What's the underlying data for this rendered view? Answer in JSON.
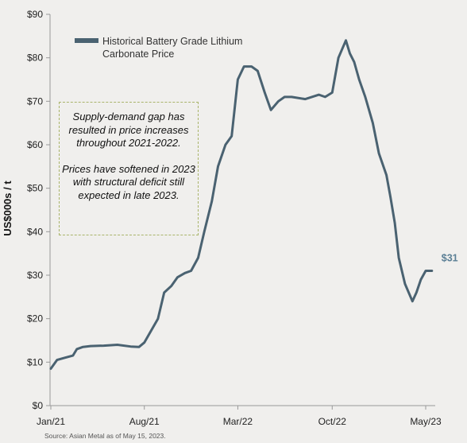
{
  "chart_data": {
    "type": "line",
    "title": "",
    "ylabel": "US$000s / t",
    "xlabel": "",
    "ylim": [
      0,
      90
    ],
    "y_ticks": [
      "$0",
      "$10",
      "$20",
      "$30",
      "$40",
      "$50",
      "$60",
      "$70",
      "$80",
      "$90"
    ],
    "x_tick_labels": [
      "Jan/21",
      "Aug/21",
      "Mar/22",
      "Oct/22",
      "May/23"
    ],
    "legend": {
      "position": "top-left"
    },
    "series": [
      {
        "name": "Historical Battery Grade Lithium Carbonate Price",
        "color": "#4a6271",
        "x": [
          "2021-01",
          "2021-01-15",
          "2021-02",
          "2021-02-20",
          "2021-03",
          "2021-03-15",
          "2021-04",
          "2021-05",
          "2021-06",
          "2021-07",
          "2021-07-20",
          "2021-08",
          "2021-08-15",
          "2021-09",
          "2021-09-15",
          "2021-10",
          "2021-10-15",
          "2021-11",
          "2021-11-15",
          "2021-12",
          "2021-12-15",
          "2022-01",
          "2022-01-15",
          "2022-02",
          "2022-02-15",
          "2022-03",
          "2022-03-15",
          "2022-04",
          "2022-04-15",
          "2022-05",
          "2022-05-15",
          "2022-06",
          "2022-06-15",
          "2022-07",
          "2022-08",
          "2022-09",
          "2022-09-15",
          "2022-10",
          "2022-10-15",
          "2022-11",
          "2022-11-10",
          "2022-11-20",
          "2022-12",
          "2022-12-15",
          "2023-01",
          "2023-01-15",
          "2023-02",
          "2023-02-10",
          "2023-02-20",
          "2023-03",
          "2023-03-15",
          "2023-04",
          "2023-04-10",
          "2023-04-20",
          "2023-05",
          "2023-05-15"
        ],
        "values": [
          8.5,
          10.5,
          11,
          11.5,
          13,
          13.5,
          13.7,
          13.8,
          14,
          13.6,
          13.5,
          14.5,
          17,
          20,
          26,
          27.5,
          29.5,
          30.5,
          31,
          34,
          40,
          47,
          55,
          60,
          62,
          75,
          78,
          78,
          77,
          72,
          68,
          70,
          71,
          71,
          70.5,
          71.5,
          71,
          72,
          80,
          84,
          81,
          79,
          75,
          71,
          65,
          58,
          53,
          48,
          42,
          34,
          28,
          24,
          26,
          29,
          31,
          31
        ]
      }
    ],
    "end_label": "$31",
    "annotations": [
      "Supply-demand gap has resulted in price increases throughout 2021-2022.",
      "Prices have softened in 2023 with structural deficit still expected in late 2023."
    ],
    "source": "Source: Asian Metal as of May 15, 2023."
  }
}
